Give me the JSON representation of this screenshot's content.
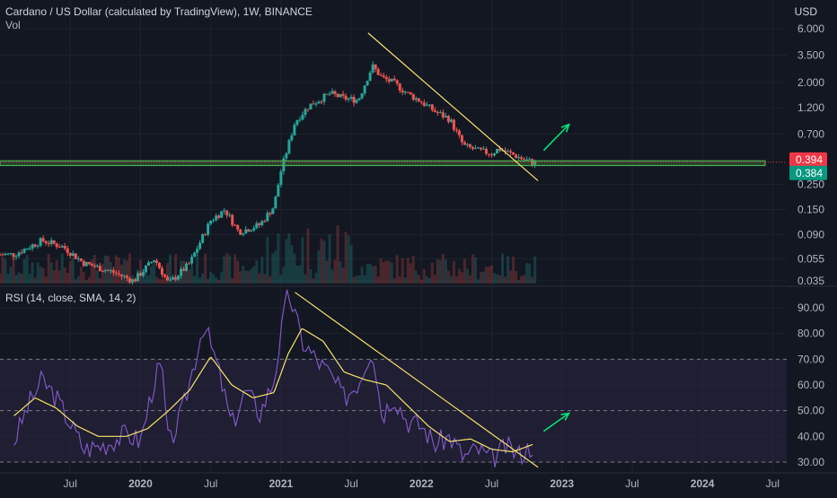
{
  "header": {
    "symbol_title": "Cardano / US Dollar (calculated by TradingView), 1W, BINANCE",
    "volume_label": "Vol",
    "rsi_title": "RSI (14, close, SMA, 14, 2)",
    "currency": "USD"
  },
  "colors": {
    "background": "#131722",
    "grid": "#1e222d",
    "up_candle": "#26a69a",
    "down_candle": "#ef5350",
    "trendline": "#f7e36b",
    "support_zone": "#4caf50",
    "rsi_line": "#7e57c2",
    "rsi_ma": "#f7e36b",
    "rsi_band": "#2a2540",
    "arrow": "#00e676",
    "price_tag": "#f23645",
    "support_tag": "#089981"
  },
  "price_tags": {
    "last_price": "0.394",
    "support_price": "0.384"
  },
  "chart_data": [
    {
      "type": "candlestick",
      "title": "Cardano / US Dollar (calculated by TradingView), 1W, BINANCE",
      "y_scale": "log",
      "y_ticks": [
        "6.000",
        "3.500",
        "2.000",
        "1.200",
        "0.700",
        "0.250",
        "0.150",
        "0.090",
        "0.055",
        "0.035"
      ],
      "x_ticks": [
        "Jul",
        "2020",
        "Jul",
        "2021",
        "Jul",
        "2022",
        "Jul",
        "2023",
        "Jul",
        "2024",
        "Jul"
      ],
      "x_tick_dates": [
        2019.5,
        2020.0,
        2020.5,
        2021.0,
        2021.5,
        2022.0,
        2022.5,
        2023.0,
        2023.5,
        2024.0,
        2024.5
      ],
      "close_path": [
        [
          2019.1,
          0.06
        ],
        [
          2019.3,
          0.08
        ],
        [
          2019.45,
          0.07
        ],
        [
          2019.6,
          0.05
        ],
        [
          2019.8,
          0.042
        ],
        [
          2019.95,
          0.035
        ],
        [
          2020.1,
          0.055
        ],
        [
          2020.2,
          0.033
        ],
        [
          2020.35,
          0.05
        ],
        [
          2020.5,
          0.12
        ],
        [
          2020.6,
          0.15
        ],
        [
          2020.7,
          0.095
        ],
        [
          2020.85,
          0.11
        ],
        [
          2020.95,
          0.16
        ],
        [
          2021.0,
          0.33
        ],
        [
          2021.1,
          0.9
        ],
        [
          2021.2,
          1.25
        ],
        [
          2021.35,
          1.6
        ],
        [
          2021.45,
          1.45
        ],
        [
          2021.55,
          1.4
        ],
        [
          2021.65,
          2.8
        ],
        [
          2021.72,
          2.2
        ],
        [
          2021.8,
          2.0
        ],
        [
          2021.9,
          1.6
        ],
        [
          2022.0,
          1.35
        ],
        [
          2022.1,
          1.1
        ],
        [
          2022.2,
          0.95
        ],
        [
          2022.3,
          0.55
        ],
        [
          2022.4,
          0.5
        ],
        [
          2022.5,
          0.47
        ],
        [
          2022.55,
          0.52
        ],
        [
          2022.65,
          0.46
        ],
        [
          2022.72,
          0.42
        ],
        [
          2022.8,
          0.39
        ]
      ],
      "annotations": {
        "trendline": [
          [
            2021.62,
            5.5
          ],
          [
            2022.83,
            0.27
          ]
        ],
        "support_zone": [
          0.368,
          0.405
        ],
        "up_arrow": [
          [
            2022.87,
            0.5
          ],
          [
            2023.05,
            0.85
          ]
        ]
      }
    },
    {
      "type": "line",
      "title": "RSI (14, close, SMA, 14, 2)",
      "y_ticks": [
        "90.00",
        "80.00",
        "70.00",
        "60.00",
        "50.00",
        "40.00",
        "30.00"
      ],
      "band": [
        30,
        70
      ],
      "levels": [
        30,
        50,
        70
      ],
      "series": [
        {
          "key": "rsi",
          "values": [
            [
              2019.1,
              38
            ],
            [
              2019.2,
              52
            ],
            [
              2019.3,
              62
            ],
            [
              2019.4,
              55
            ],
            [
              2019.5,
              45
            ],
            [
              2019.6,
              35
            ],
            [
              2019.75,
              37
            ],
            [
              2019.9,
              41
            ],
            [
              2020.0,
              38
            ],
            [
              2020.1,
              62
            ],
            [
              2020.15,
              68
            ],
            [
              2020.2,
              36
            ],
            [
              2020.3,
              50
            ],
            [
              2020.45,
              84
            ],
            [
              2020.55,
              67
            ],
            [
              2020.65,
              44
            ],
            [
              2020.75,
              58
            ],
            [
              2020.85,
              49
            ],
            [
              2020.95,
              62
            ],
            [
              2021.05,
              97
            ],
            [
              2021.15,
              77
            ],
            [
              2021.25,
              70
            ],
            [
              2021.35,
              64
            ],
            [
              2021.45,
              55
            ],
            [
              2021.55,
              61
            ],
            [
              2021.65,
              75
            ],
            [
              2021.72,
              48
            ],
            [
              2021.8,
              56
            ],
            [
              2021.9,
              46
            ],
            [
              2022.0,
              44
            ],
            [
              2022.1,
              37
            ],
            [
              2022.2,
              40
            ],
            [
              2022.3,
              32
            ],
            [
              2022.4,
              35
            ],
            [
              2022.5,
              31
            ],
            [
              2022.6,
              36
            ],
            [
              2022.7,
              33
            ],
            [
              2022.8,
              37
            ]
          ]
        },
        {
          "key": "rsi_sma",
          "values": [
            [
              2019.1,
              48
            ],
            [
              2019.25,
              55
            ],
            [
              2019.4,
              51
            ],
            [
              2019.55,
              44
            ],
            [
              2019.7,
              40
            ],
            [
              2019.9,
              40
            ],
            [
              2020.05,
              43
            ],
            [
              2020.2,
              50
            ],
            [
              2020.35,
              58
            ],
            [
              2020.5,
              71
            ],
            [
              2020.65,
              60
            ],
            [
              2020.8,
              55
            ],
            [
              2020.95,
              57
            ],
            [
              2021.05,
              72
            ],
            [
              2021.15,
              82
            ],
            [
              2021.3,
              77
            ],
            [
              2021.45,
              65
            ],
            [
              2021.6,
              62
            ],
            [
              2021.75,
              60
            ],
            [
              2021.9,
              52
            ],
            [
              2022.05,
              44
            ],
            [
              2022.2,
              38
            ],
            [
              2022.35,
              39
            ],
            [
              2022.5,
              35
            ],
            [
              2022.65,
              34
            ],
            [
              2022.8,
              37
            ]
          ]
        }
      ],
      "annotations": {
        "trendline": [
          [
            2021.1,
            96
          ],
          [
            2022.83,
            28
          ]
        ],
        "up_arrow": [
          [
            2022.87,
            42
          ],
          [
            2023.05,
            49
          ]
        ]
      }
    }
  ]
}
